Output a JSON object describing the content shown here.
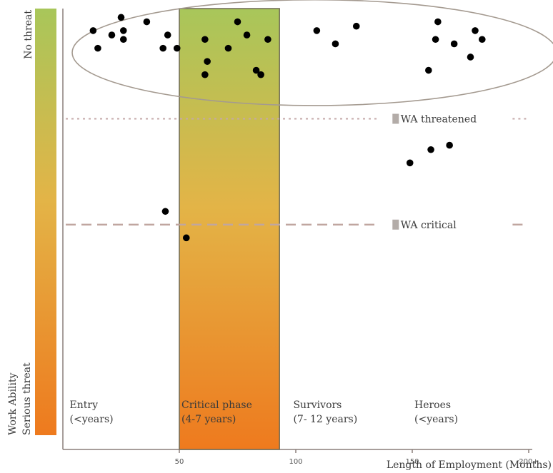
{
  "chart_data": {
    "type": "scatter",
    "title": "",
    "xlabel": "Length of Employment (Months)",
    "ylabel_top": "No threat",
    "ylabel_bottom_line1": "Work Ability",
    "ylabel_bottom_line2": "Serious threat",
    "xlim": [
      0,
      200
    ],
    "x_ticks": [
      "50",
      "100",
      "150",
      "200+"
    ],
    "y_scale": "work ability score, 0 = serious threat, 100 = no threat",
    "ylim": [
      0,
      100
    ],
    "colors": {
      "gradient_top": "#a8c65a",
      "gradient_mid": "#e8a93a",
      "gradient_bottom": "#ee7a1e",
      "points": "#000000",
      "threshold_line": "#c4a8a8",
      "critical_line": "#c0a6a0",
      "ellipse": "#a49a90"
    },
    "highlight_region": {
      "x_range": [
        50,
        93
      ],
      "label": "Critical phase",
      "sublabel": "(4-7 years)"
    },
    "phases": [
      {
        "label": "Entry",
        "sublabel": "(<years)",
        "x": 2
      },
      {
        "label": "Critical phase",
        "sublabel": "(4-7 years)",
        "x": 50
      },
      {
        "label": "Survivors",
        "sublabel": "(7- 12 years)",
        "x": 98
      },
      {
        "label": "Heroes",
        "sublabel": "(<years)",
        "x": 150
      }
    ],
    "thresholds": [
      {
        "label": "WA threatened",
        "y": 75,
        "style": "dotted"
      },
      {
        "label": "WA critical",
        "y": 51,
        "style": "dashed"
      }
    ],
    "cluster_ellipse": {
      "label": "",
      "cx": 108,
      "cy": 90,
      "rx": 104,
      "ry": 12
    },
    "points": [
      [
        13,
        95
      ],
      [
        15,
        91
      ],
      [
        21,
        94
      ],
      [
        25,
        98
      ],
      [
        26,
        95
      ],
      [
        26,
        93
      ],
      [
        36,
        97
      ],
      [
        43,
        91
      ],
      [
        45,
        94
      ],
      [
        49,
        91
      ],
      [
        61,
        93
      ],
      [
        62,
        88
      ],
      [
        61,
        85
      ],
      [
        71,
        91
      ],
      [
        75,
        97
      ],
      [
        79,
        94
      ],
      [
        83,
        86
      ],
      [
        85,
        85
      ],
      [
        88,
        93
      ],
      [
        109,
        95
      ],
      [
        117,
        92
      ],
      [
        126,
        96
      ],
      [
        157,
        86
      ],
      [
        160,
        93
      ],
      [
        161,
        97
      ],
      [
        168,
        92
      ],
      [
        175,
        89
      ],
      [
        177,
        95
      ],
      [
        180,
        93
      ],
      [
        149,
        65
      ],
      [
        158,
        68
      ],
      [
        166,
        69
      ],
      [
        44,
        54
      ],
      [
        53,
        48
      ]
    ]
  }
}
